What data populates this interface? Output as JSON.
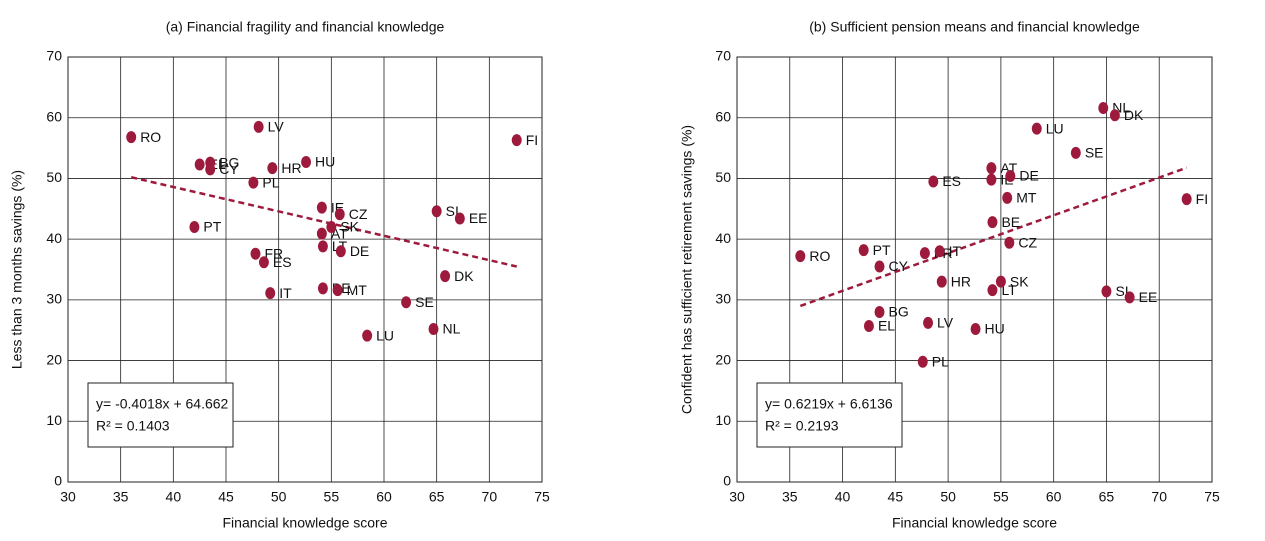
{
  "chart_data": [
    {
      "type": "scatter",
      "title": "(a) Financial fragility and financial knowledge",
      "xlabel": "Financial knowledge score",
      "ylabel": "Less than 3 months savings (%)",
      "labels": [
        "RO",
        "PT",
        "EL",
        "BG",
        "CY",
        "PL",
        "FR",
        "ES",
        "LV",
        "IT",
        "HR",
        "HU",
        "AT",
        "IE",
        "LT",
        "BE",
        "SK",
        "CZ",
        "DE",
        "MT",
        "LU",
        "SE",
        "SI",
        "NL",
        "DK",
        "EE",
        "FI"
      ],
      "x": [
        36.0,
        42.0,
        42.5,
        43.5,
        43.5,
        47.6,
        47.8,
        48.6,
        48.1,
        49.2,
        49.4,
        52.6,
        54.1,
        54.1,
        54.2,
        54.2,
        55.0,
        55.8,
        55.9,
        55.6,
        58.4,
        62.1,
        65.0,
        64.7,
        65.8,
        67.2,
        72.6
      ],
      "y": [
        56.8,
        42.0,
        52.3,
        52.6,
        51.5,
        49.3,
        37.6,
        36.2,
        58.5,
        31.1,
        51.7,
        52.7,
        40.9,
        45.2,
        38.8,
        31.9,
        42.0,
        44.1,
        38.0,
        31.6,
        24.1,
        29.6,
        44.6,
        25.2,
        33.9,
        43.4,
        56.3
      ],
      "color": "#9e1a3c",
      "xlim": [
        30,
        75
      ],
      "ylim": [
        0,
        70
      ],
      "xticks": [
        30,
        35,
        40,
        45,
        50,
        55,
        60,
        65,
        70,
        75
      ],
      "yticks": [
        0,
        10,
        20,
        30,
        40,
        50,
        60,
        70
      ],
      "grid": true,
      "trendline": {
        "slope": -0.4018,
        "intercept": 64.662,
        "equation_label": "y= -0.4018x + 64.662",
        "r2_label": "R² = 0.1403"
      }
    },
    {
      "type": "scatter",
      "title": "(b) Sufficient pension means and financial knowledge",
      "xlabel": "Financial knowledge score",
      "ylabel": "Confident has sufficient retirement savings (%)",
      "labels": [
        "RO",
        "PT",
        "EL",
        "BG",
        "CY",
        "PL",
        "FR",
        "ES",
        "LV",
        "IT",
        "HR",
        "HU",
        "AT",
        "IE",
        "LT",
        "BE",
        "SK",
        "CZ",
        "DE",
        "MT",
        "LU",
        "SE",
        "SI",
        "NL",
        "DK",
        "EE",
        "FI"
      ],
      "x": [
        36.0,
        42.0,
        42.5,
        43.5,
        43.5,
        47.6,
        47.8,
        48.6,
        48.1,
        49.2,
        49.4,
        52.6,
        54.1,
        54.1,
        54.2,
        54.2,
        55.0,
        55.8,
        55.9,
        55.6,
        58.4,
        62.1,
        65.0,
        64.7,
        65.8,
        67.2,
        72.6
      ],
      "y": [
        37.2,
        38.2,
        25.7,
        28.0,
        35.5,
        19.8,
        37.7,
        49.5,
        26.2,
        38.0,
        33.0,
        25.2,
        51.7,
        49.8,
        31.6,
        42.8,
        33.0,
        39.4,
        50.4,
        46.8,
        58.2,
        54.2,
        31.4,
        61.6,
        60.4,
        30.4,
        46.6
      ],
      "color": "#9e1a3c",
      "xlim": [
        30,
        75
      ],
      "ylim": [
        0,
        70
      ],
      "xticks": [
        30,
        35,
        40,
        45,
        50,
        55,
        60,
        65,
        70,
        75
      ],
      "yticks": [
        0,
        10,
        20,
        30,
        40,
        50,
        60,
        70
      ],
      "grid": true,
      "trendline": {
        "slope": 0.6219,
        "intercept": 6.6136,
        "equation_label": "y= 0.6219x + 6.6136",
        "r2_label": "R² = 0.2193"
      }
    }
  ]
}
